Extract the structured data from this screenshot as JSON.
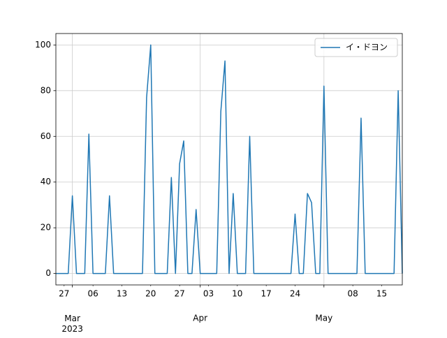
{
  "chart_data": {
    "type": "line",
    "x": [
      "2023-02-25",
      "2023-02-26",
      "2023-02-27",
      "2023-02-28",
      "2023-03-01",
      "2023-03-02",
      "2023-03-03",
      "2023-03-04",
      "2023-03-05",
      "2023-03-06",
      "2023-03-07",
      "2023-03-08",
      "2023-03-09",
      "2023-03-10",
      "2023-03-11",
      "2023-03-12",
      "2023-03-13",
      "2023-03-14",
      "2023-03-15",
      "2023-03-16",
      "2023-03-17",
      "2023-03-18",
      "2023-03-19",
      "2023-03-20",
      "2023-03-21",
      "2023-03-22",
      "2023-03-23",
      "2023-03-24",
      "2023-03-25",
      "2023-03-26",
      "2023-03-27",
      "2023-03-28",
      "2023-03-29",
      "2023-03-30",
      "2023-03-31",
      "2023-04-01",
      "2023-04-02",
      "2023-04-03",
      "2023-04-04",
      "2023-04-05",
      "2023-04-06",
      "2023-04-07",
      "2023-04-08",
      "2023-04-09",
      "2023-04-10",
      "2023-04-11",
      "2023-04-12",
      "2023-04-13",
      "2023-04-14",
      "2023-04-15",
      "2023-04-16",
      "2023-04-17",
      "2023-04-18",
      "2023-04-19",
      "2023-04-20",
      "2023-04-21",
      "2023-04-22",
      "2023-04-23",
      "2023-04-24",
      "2023-04-25",
      "2023-04-26",
      "2023-04-27",
      "2023-04-28",
      "2023-04-29",
      "2023-04-30",
      "2023-05-01",
      "2023-05-02",
      "2023-05-03",
      "2023-05-04",
      "2023-05-05",
      "2023-05-06",
      "2023-05-07",
      "2023-05-08",
      "2023-05-09",
      "2023-05-10",
      "2023-05-11",
      "2023-05-12",
      "2023-05-13",
      "2023-05-14",
      "2023-05-15",
      "2023-05-16",
      "2023-05-17",
      "2023-05-18",
      "2023-05-19",
      "2023-05-20"
    ],
    "series": [
      {
        "name": "イ・ドヨン",
        "color": "#1f77b4",
        "values": [
          0,
          0,
          0,
          0,
          34,
          0,
          0,
          0,
          61,
          0,
          0,
          0,
          0,
          34,
          0,
          0,
          0,
          0,
          0,
          0,
          0,
          0,
          77,
          100,
          0,
          0,
          0,
          0,
          42,
          0,
          48,
          58,
          0,
          0,
          28,
          0,
          0,
          0,
          0,
          0,
          71,
          93,
          0,
          35,
          0,
          0,
          0,
          60,
          0,
          0,
          0,
          0,
          0,
          0,
          0,
          0,
          0,
          0,
          26,
          0,
          0,
          35,
          31,
          0,
          0,
          82,
          0,
          0,
          0,
          0,
          0,
          0,
          0,
          0,
          68,
          0,
          0,
          0,
          0,
          0,
          0,
          0,
          0,
          80,
          0
        ]
      }
    ],
    "xlim": [
      "2023-02-25",
      "2023-05-20"
    ],
    "xticks": [
      {
        "value": "2023-03-01",
        "label": "Mar\n2023"
      },
      {
        "value": "2023-04-01",
        "label": "Apr"
      },
      {
        "value": "2023-05-01",
        "label": "May"
      }
    ],
    "xticks_minor": [
      {
        "value": "2023-02-27",
        "label": "27"
      },
      {
        "value": "2023-03-06",
        "label": "06"
      },
      {
        "value": "2023-03-13",
        "label": "13"
      },
      {
        "value": "2023-03-20",
        "label": "20"
      },
      {
        "value": "2023-03-27",
        "label": "27"
      },
      {
        "value": "2023-04-03",
        "label": "03"
      },
      {
        "value": "2023-04-10",
        "label": "10"
      },
      {
        "value": "2023-04-17",
        "label": "17"
      },
      {
        "value": "2023-04-24",
        "label": "24"
      },
      {
        "value": "2023-05-08",
        "label": "08"
      },
      {
        "value": "2023-05-15",
        "label": "15"
      }
    ],
    "ylim": [
      -5,
      105
    ],
    "yticks": [
      0,
      20,
      40,
      60,
      80,
      100
    ],
    "grid": true,
    "legend": "upper right"
  }
}
